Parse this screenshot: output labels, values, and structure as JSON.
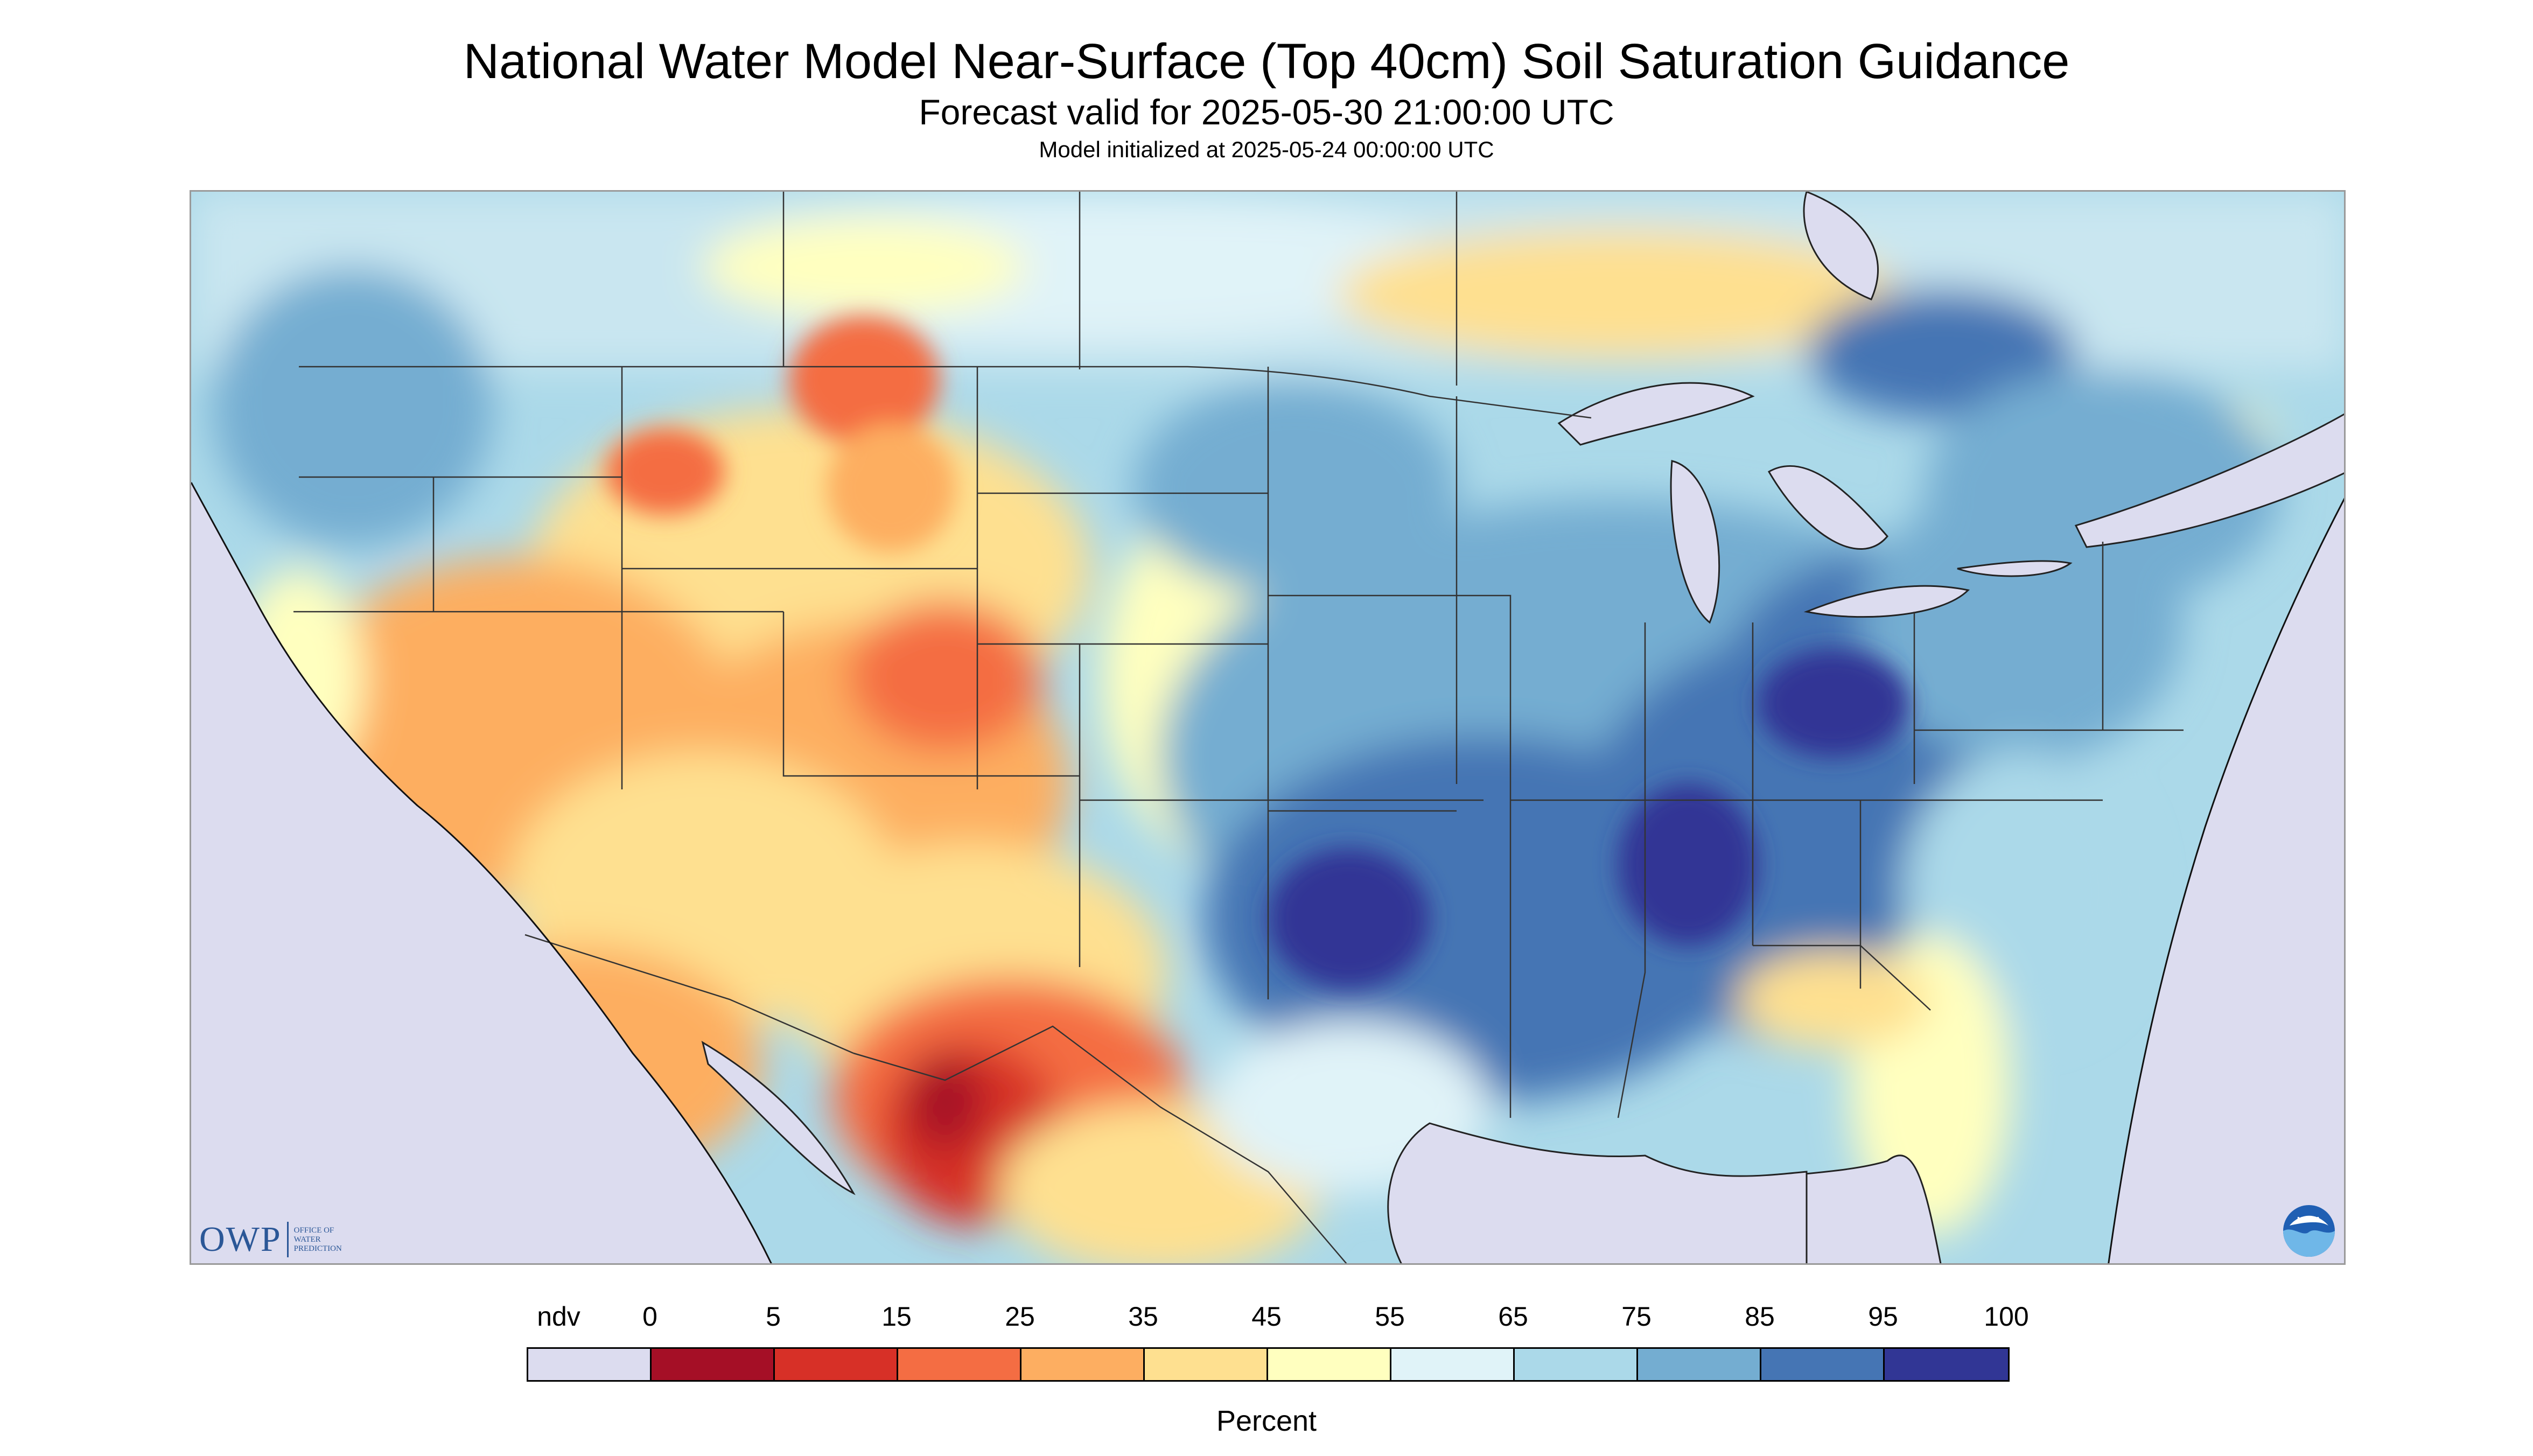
{
  "title": "National Water Model Near-Surface (Top 40cm) Soil Saturation Guidance",
  "subtitle": "Forecast valid for 2025-05-30 21:00:00 UTC",
  "init_line": "Model initialized at 2025-05-24 00:00:00 UTC",
  "legend": {
    "unit": "Percent",
    "labels": [
      "ndv",
      "0",
      "5",
      "15",
      "25",
      "35",
      "45",
      "55",
      "65",
      "75",
      "85",
      "95",
      "100"
    ],
    "colors": [
      "#dcdcef",
      "#a50f26",
      "#d73027",
      "#f46d43",
      "#fdae61",
      "#fee090",
      "#ffffbf",
      "#e0f3f8",
      "#abd9e9",
      "#74add1",
      "#4575b4",
      "#313695"
    ]
  },
  "logos": {
    "owp_mark": "OWP",
    "owp_sub": [
      "OFFICE OF",
      "WATER",
      "PREDICTION"
    ],
    "noaa": "NOAA"
  },
  "map": {
    "nodata_color": "#dcdcef",
    "water_color": "#dcdcef",
    "boundary_color": "#333333"
  }
}
